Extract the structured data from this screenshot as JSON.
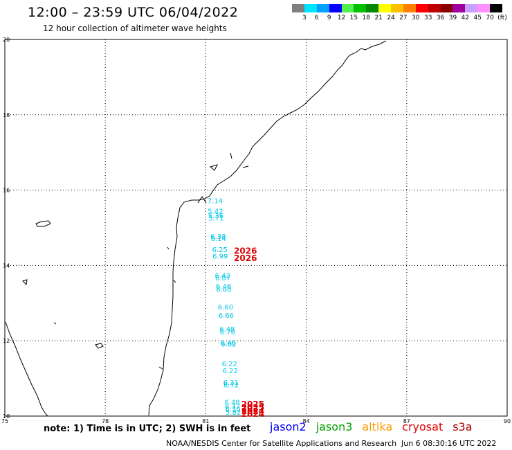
{
  "header": {
    "title": "12:00 – 23:59 UTC 06/04/2022",
    "subtitle": "12 hour collection of altimeter wave heights"
  },
  "legend": {
    "unit": "(ft)",
    "levels": [
      {
        "label": "3",
        "color": "#7f7f7f"
      },
      {
        "label": "6",
        "color": "#00e5ff"
      },
      {
        "label": "9",
        "color": "#00a0ff"
      },
      {
        "label": "12",
        "color": "#0000ff"
      },
      {
        "label": "15",
        "color": "#50f050"
      },
      {
        "label": "18",
        "color": "#00c000"
      },
      {
        "label": "21",
        "color": "#008800"
      },
      {
        "label": "24",
        "color": "#ffff00"
      },
      {
        "label": "27",
        "color": "#ffc000"
      },
      {
        "label": "30",
        "color": "#ff8000"
      },
      {
        "label": "33",
        "color": "#ff0000"
      },
      {
        "label": "36",
        "color": "#c00000"
      },
      {
        "label": "39",
        "color": "#880000"
      },
      {
        "label": "42",
        "color": "#a000a0"
      },
      {
        "label": "45",
        "color": "#c8a0ff"
      },
      {
        "label": "70",
        "color": "#ff90ff"
      },
      {
        "label": "",
        "color": "#000000"
      }
    ]
  },
  "axes": {
    "lon_labels": [
      "75",
      "78",
      "81",
      "84",
      "87",
      "90"
    ],
    "lat_labels": [
      "10",
      "12",
      "14",
      "16",
      "18",
      "20"
    ]
  },
  "observations": {
    "color_swh": "#00c8e6",
    "color_time": "#dd0000",
    "swh": [
      {
        "lat": 15.73,
        "lon": 81.05,
        "text": "7.14"
      },
      {
        "lat": 15.45,
        "lon": 81.06,
        "text": "5.42"
      },
      {
        "lat": 15.33,
        "lon": 81.07,
        "text": "5.36"
      },
      {
        "lat": 15.27,
        "lon": 81.08,
        "text": "5.71"
      },
      {
        "lat": 14.78,
        "lon": 81.14,
        "text": "6.38"
      },
      {
        "lat": 14.72,
        "lon": 81.15,
        "text": "6.14"
      },
      {
        "lat": 14.43,
        "lon": 81.19,
        "text": "6.25"
      },
      {
        "lat": 14.26,
        "lon": 81.2,
        "text": "6.99"
      },
      {
        "lat": 13.74,
        "lon": 81.27,
        "text": "6.42"
      },
      {
        "lat": 13.68,
        "lon": 81.28,
        "text": "6.07"
      },
      {
        "lat": 13.46,
        "lon": 81.3,
        "text": "6.46"
      },
      {
        "lat": 13.37,
        "lon": 81.31,
        "text": "6.60"
      },
      {
        "lat": 12.9,
        "lon": 81.36,
        "text": "6.60"
      },
      {
        "lat": 12.68,
        "lon": 81.38,
        "text": "6.66"
      },
      {
        "lat": 12.32,
        "lon": 81.41,
        "text": "6.48"
      },
      {
        "lat": 12.24,
        "lon": 81.42,
        "text": "6.76"
      },
      {
        "lat": 11.96,
        "lon": 81.44,
        "text": "6.46"
      },
      {
        "lat": 11.92,
        "lon": 81.45,
        "text": "6.02"
      },
      {
        "lat": 11.4,
        "lon": 81.48,
        "text": "6.22"
      },
      {
        "lat": 11.21,
        "lon": 81.5,
        "text": "6.22"
      },
      {
        "lat": 10.9,
        "lon": 81.52,
        "text": "6.21"
      },
      {
        "lat": 10.84,
        "lon": 81.53,
        "text": "6.72"
      },
      {
        "lat": 10.38,
        "lon": 81.56,
        "text": "6.48"
      },
      {
        "lat": 10.27,
        "lon": 81.57,
        "text": "6.37"
      },
      {
        "lat": 10.19,
        "lon": 81.58,
        "text": "6.10"
      },
      {
        "lat": 10.11,
        "lon": 81.59,
        "text": "5.82"
      }
    ],
    "times": [
      {
        "lat": 14.4,
        "lon": 81.84,
        "text": "2026"
      },
      {
        "lat": 14.21,
        "lon": 81.84,
        "text": "2026"
      },
      {
        "lat": 10.33,
        "lon": 82.06,
        "text": "2025"
      },
      {
        "lat": 10.24,
        "lon": 82.06,
        "text": "2025"
      },
      {
        "lat": 10.15,
        "lon": 82.06,
        "text": "2024"
      },
      {
        "lat": 10.07,
        "lon": 82.06,
        "text": "2024"
      }
    ]
  },
  "note": "note:  1) Time is in UTC;  2) SWH is in feet",
  "missions": [
    {
      "name": "jason2",
      "color": "#0000ff"
    },
    {
      "name": "jason3",
      "color": "#00a000"
    },
    {
      "name": "altika",
      "color": "#ff9900"
    },
    {
      "name": "cryosat",
      "color": "#dd0000"
    },
    {
      "name": "s3a",
      "color": "#aa0000"
    }
  ],
  "footer": {
    "credit": "NOAA/NESDIS Center for Satellite Applications and Research",
    "timestamp": "Jun  6 08:30:16 UTC 2022"
  }
}
